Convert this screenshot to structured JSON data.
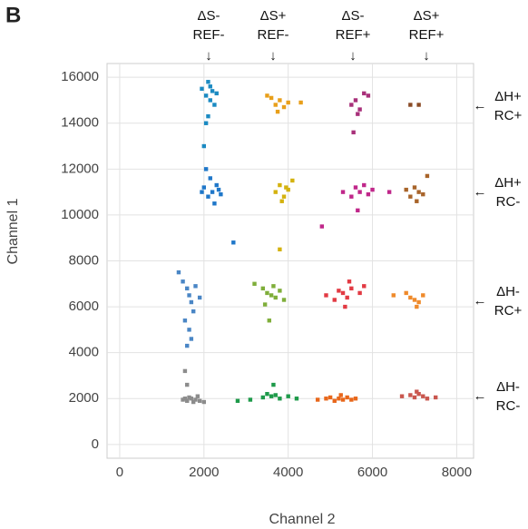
{
  "panel_label": "B",
  "chart_data": {
    "type": "scatter",
    "xlabel": "Channel 2",
    "ylabel": "Channel 1",
    "xlim": [
      -300,
      8400
    ],
    "ylim": [
      -600,
      16600
    ],
    "xticks": [
      0,
      2000,
      4000,
      6000,
      8000
    ],
    "yticks": [
      0,
      2000,
      4000,
      6000,
      8000,
      10000,
      12000,
      14000,
      16000
    ],
    "grid": true,
    "column_labels": [
      [
        "ΔS-",
        "REF-"
      ],
      [
        "ΔS+",
        "REF-"
      ],
      [
        "ΔS-",
        "REF+"
      ],
      [
        "ΔS+",
        "REF+"
      ]
    ],
    "column_arrow": "↓",
    "row_labels": [
      [
        "ΔH+",
        "RC+"
      ],
      [
        "ΔH+",
        "RC-"
      ],
      [
        "ΔH-",
        "RC+"
      ],
      [
        "ΔH-",
        "RC-"
      ]
    ],
    "row_arrow": "←",
    "series": [
      {
        "color": "#8c8c8c",
        "x": [
          1500,
          1600,
          1700,
          1800,
          1900,
          1650,
          1750,
          2000,
          1550,
          1850,
          1550,
          1600
        ],
        "y": [
          1950,
          1900,
          2000,
          1950,
          1900,
          2050,
          1850,
          1850,
          2000,
          2100,
          3200,
          2600
        ]
      },
      {
        "color": "#1e9a4a",
        "x": [
          2800,
          3100,
          3400,
          3600,
          3700,
          3800,
          4000,
          3500,
          3650,
          4200
        ],
        "y": [
          1900,
          1950,
          2050,
          2100,
          2150,
          2000,
          2100,
          2200,
          2600,
          2000
        ]
      },
      {
        "color": "#e8671b",
        "x": [
          4700,
          4900,
          5000,
          5200,
          5300,
          5400,
          5600,
          5100,
          5250,
          5500
        ],
        "y": [
          1950,
          2000,
          2050,
          2000,
          1950,
          2050,
          2000,
          1900,
          2150,
          1950
        ]
      },
      {
        "color": "#c9574f",
        "x": [
          6700,
          6900,
          7000,
          7100,
          7200,
          7300,
          7500,
          7050
        ],
        "y": [
          2100,
          2150,
          2050,
          2200,
          2100,
          2000,
          2050,
          2300
        ]
      },
      {
        "color": "#4a86c5",
        "x": [
          1400,
          1500,
          1600,
          1650,
          1700,
          1750,
          1550,
          1650,
          1700,
          1600,
          1800,
          1900
        ],
        "y": [
          7500,
          7100,
          6800,
          6500,
          6200,
          5800,
          5400,
          5000,
          4600,
          4300,
          6900,
          6400
        ]
      },
      {
        "color": "#7fae3a",
        "x": [
          3200,
          3400,
          3500,
          3600,
          3700,
          3800,
          3900,
          3450,
          3650,
          3550
        ],
        "y": [
          7000,
          6800,
          6600,
          6500,
          6400,
          6700,
          6300,
          6100,
          6900,
          5400
        ]
      },
      {
        "color": "#e23a43",
        "x": [
          4900,
          5100,
          5200,
          5300,
          5400,
          5500,
          5700,
          5800,
          5350,
          5450
        ],
        "y": [
          6500,
          6300,
          6700,
          6600,
          6400,
          6800,
          6600,
          6900,
          6000,
          7100
        ]
      },
      {
        "color": "#ef8a2b",
        "x": [
          6500,
          6800,
          6900,
          7000,
          7100,
          7200,
          7050
        ],
        "y": [
          6500,
          6600,
          6400,
          6300,
          6200,
          6500,
          6000
        ]
      },
      {
        "color": "#1f77c9",
        "x": [
          2000,
          2100,
          2200,
          2300,
          2400,
          2150,
          2250,
          2350,
          2050,
          2700,
          1950
        ],
        "y": [
          11200,
          10800,
          11000,
          11300,
          10900,
          11600,
          10500,
          11100,
          12000,
          8800,
          11000
        ]
      },
      {
        "color": "#d4b20f",
        "x": [
          3700,
          3800,
          3900,
          4000,
          4100,
          3850,
          3950,
          3800
        ],
        "y": [
          11000,
          11300,
          10800,
          11100,
          11500,
          10600,
          11200,
          8500
        ]
      },
      {
        "color": "#c0278a",
        "x": [
          5300,
          5500,
          5600,
          5700,
          5800,
          5900,
          6000,
          5650,
          4800,
          6400
        ],
        "y": [
          11000,
          10800,
          11200,
          11000,
          11300,
          10900,
          11100,
          10200,
          9500,
          11000
        ]
      },
      {
        "color": "#a8642a",
        "x": [
          6800,
          6900,
          7000,
          7100,
          7200,
          7300,
          7050
        ],
        "y": [
          11100,
          10800,
          11200,
          11000,
          10900,
          11700,
          10600
        ]
      },
      {
        "color": "#1b8ac2",
        "x": [
          1950,
          2050,
          2100,
          2150,
          2200,
          2250,
          2300,
          2100,
          2050,
          2000,
          2150
        ],
        "y": [
          15500,
          15200,
          15800,
          15000,
          15400,
          14800,
          15300,
          14300,
          14000,
          13000,
          15600
        ]
      },
      {
        "color": "#e89f1a",
        "x": [
          3500,
          3600,
          3700,
          3800,
          3900,
          4000,
          4300,
          3750
        ],
        "y": [
          15200,
          15100,
          14800,
          15000,
          14700,
          14900,
          14900,
          14500
        ]
      },
      {
        "color": "#a8307a",
        "x": [
          5500,
          5600,
          5700,
          5800,
          5900,
          5650,
          5550
        ],
        "y": [
          14800,
          15000,
          14600,
          15300,
          15200,
          14400,
          13600
        ]
      },
      {
        "color": "#8a4b26",
        "x": [
          6900,
          7100
        ],
        "y": [
          14800,
          14800
        ]
      }
    ]
  }
}
